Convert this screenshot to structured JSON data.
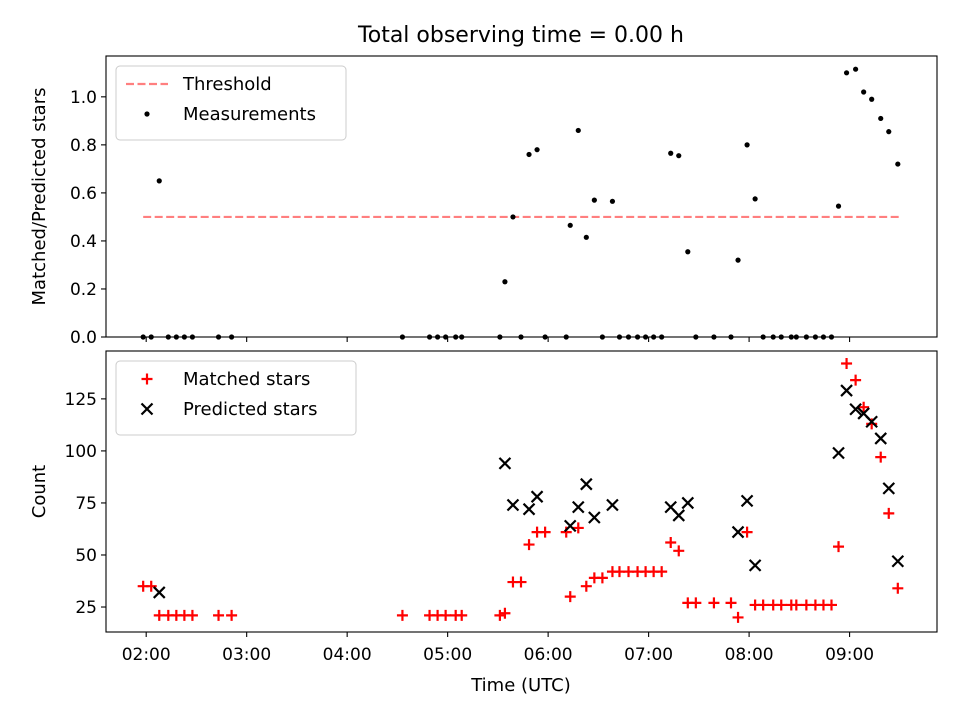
{
  "figure": {
    "title": "Total observing time = 0.00 h",
    "xlabel": "Time (UTC)",
    "x_tick_labels": [
      "02:00",
      "03:00",
      "04:00",
      "05:00",
      "06:00",
      "07:00",
      "08:00",
      "09:00"
    ]
  },
  "chart_data": [
    {
      "type": "scatter",
      "ylabel": "Matched/Predicted stars",
      "xlim": [
        1.6,
        9.87
      ],
      "ylim": [
        0,
        1.17
      ],
      "yticks": [
        0.0,
        0.2,
        0.4,
        0.6,
        0.8,
        1.0
      ],
      "ytick_labels": [
        "0.0",
        "0.2",
        "0.4",
        "0.6",
        "0.8",
        "1.0"
      ],
      "legend_position": "top-left",
      "threshold": {
        "name": "Threshold",
        "value": 0.5,
        "x_range": [
          1.97,
          9.5
        ],
        "color": "#ff7f7f",
        "style": "dashed"
      },
      "series": [
        {
          "name": "Measurements",
          "marker": "dot",
          "color": "#000000",
          "x": [
            1.97,
            2.05,
            2.13,
            2.22,
            2.3,
            2.38,
            2.46,
            2.72,
            2.85,
            4.55,
            4.82,
            4.9,
            4.98,
            5.08,
            5.14,
            5.52,
            5.57,
            5.65,
            5.73,
            5.81,
            5.89,
            5.97,
            6.18,
            6.22,
            6.3,
            6.38,
            6.46,
            6.54,
            6.64,
            6.71,
            6.8,
            6.89,
            6.97,
            7.05,
            7.13,
            7.22,
            7.3,
            7.39,
            7.47,
            7.65,
            7.82,
            7.89,
            7.98,
            8.06,
            8.14,
            8.24,
            8.32,
            8.42,
            8.47,
            8.57,
            8.66,
            8.74,
            8.82,
            8.89,
            8.97,
            9.06,
            9.14,
            9.22,
            9.31,
            9.39,
            9.48
          ],
          "y": [
            0,
            0,
            0.65,
            0,
            0,
            0,
            0,
            0,
            0,
            0,
            0,
            0,
            0,
            0,
            0,
            0,
            0.23,
            0.5,
            0,
            0.76,
            0.78,
            0,
            0,
            0.465,
            0.86,
            0.415,
            0.57,
            0,
            0.565,
            0,
            0,
            0,
            0,
            0,
            0,
            0.765,
            0.755,
            0.355,
            0,
            0,
            0,
            0.32,
            0.8,
            0.575,
            0,
            0,
            0,
            0,
            0,
            0,
            0,
            0,
            0,
            0.545,
            1.1,
            1.115,
            1.02,
            0.99,
            0.91,
            0.855,
            0.72
          ]
        }
      ]
    },
    {
      "type": "scatter",
      "ylabel": "Count",
      "xlim": [
        1.6,
        9.87
      ],
      "ylim": [
        13,
        148
      ],
      "yticks": [
        25,
        50,
        75,
        100,
        125
      ],
      "ytick_labels": [
        "25",
        "50",
        "75",
        "100",
        "125"
      ],
      "legend_position": "top-left",
      "series": [
        {
          "name": "Matched stars",
          "marker": "plus",
          "color": "#ff0000",
          "x": [
            1.97,
            2.05,
            2.13,
            2.22,
            2.3,
            2.38,
            2.46,
            2.72,
            2.85,
            4.55,
            4.82,
            4.9,
            4.98,
            5.08,
            5.14,
            5.52,
            5.57,
            5.65,
            5.73,
            5.81,
            5.89,
            5.97,
            6.18,
            6.22,
            6.3,
            6.38,
            6.46,
            6.54,
            6.64,
            6.71,
            6.8,
            6.89,
            6.97,
            7.05,
            7.13,
            7.22,
            7.3,
            7.39,
            7.47,
            7.65,
            7.82,
            7.89,
            7.98,
            8.06,
            8.14,
            8.24,
            8.32,
            8.42,
            8.47,
            8.57,
            8.66,
            8.74,
            8.82,
            8.89,
            8.97,
            9.06,
            9.14,
            9.22,
            9.31,
            9.39,
            9.48
          ],
          "y": [
            35,
            35,
            21,
            21,
            21,
            21,
            21,
            21,
            21,
            21,
            21,
            21,
            21,
            21,
            21,
            21,
            22,
            37,
            37,
            55,
            61,
            61,
            61,
            30,
            63,
            35,
            39,
            39,
            42,
            42,
            42,
            42,
            42,
            42,
            42,
            56,
            52,
            27,
            27,
            27,
            27,
            20,
            61,
            26,
            26,
            26,
            26,
            26,
            26,
            26,
            26,
            26,
            26,
            54,
            142,
            134,
            121,
            113,
            97,
            70,
            34
          ]
        },
        {
          "name": "Predicted stars",
          "marker": "x",
          "color": "#000000",
          "x": [
            2.13,
            5.57,
            5.65,
            5.81,
            5.89,
            6.22,
            6.3,
            6.38,
            6.46,
            6.64,
            7.22,
            7.3,
            7.39,
            7.89,
            7.98,
            8.06,
            8.89,
            8.97,
            9.06,
            9.14,
            9.22,
            9.31,
            9.39,
            9.48
          ],
          "y": [
            32,
            94,
            74,
            72,
            78,
            64,
            73,
            84,
            68,
            74,
            73,
            69,
            75,
            61,
            76,
            45,
            99,
            129,
            120,
            118,
            114,
            106,
            82,
            47
          ]
        }
      ]
    }
  ]
}
